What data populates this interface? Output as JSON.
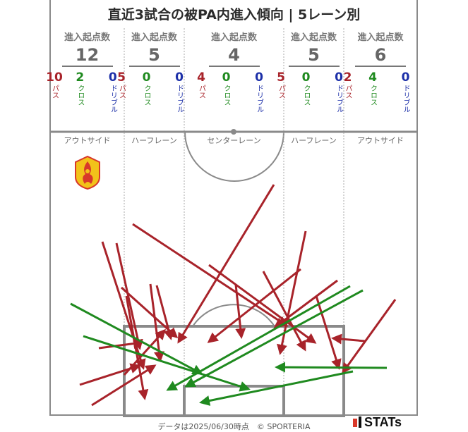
{
  "title": "直近3試合の被PA内進入傾向 | 5レーン別",
  "header_label": "進入起点数",
  "labels": {
    "pass": "パス",
    "cross": "クロス",
    "dribble": "ドリブル"
  },
  "lanes": [
    {
      "name": "アウトサイド",
      "total": "12",
      "pass": "10",
      "cross": "2",
      "dribble": "0"
    },
    {
      "name": "ハーフレーン",
      "total": "5",
      "pass": "5",
      "cross": "0",
      "dribble": "0"
    },
    {
      "name": "センターレーン",
      "total": "4",
      "pass": "4",
      "cross": "0",
      "dribble": "0"
    },
    {
      "name": "ハーフレーン",
      "total": "5",
      "pass": "5",
      "cross": "0",
      "dribble": "0"
    },
    {
      "name": "アウトサイド",
      "total": "6",
      "pass": "2",
      "cross": "4",
      "dribble": "0"
    }
  ],
  "colors": {
    "pass": "#a8232a",
    "cross": "#1f8a1f",
    "dribble": "#1c2fa8",
    "pitch_line": "#8a8a8a"
  },
  "team_logo": "team-crest-icon",
  "footer": "データは2025/06/30時点　© SPORTERIA",
  "brand": "STATs"
}
